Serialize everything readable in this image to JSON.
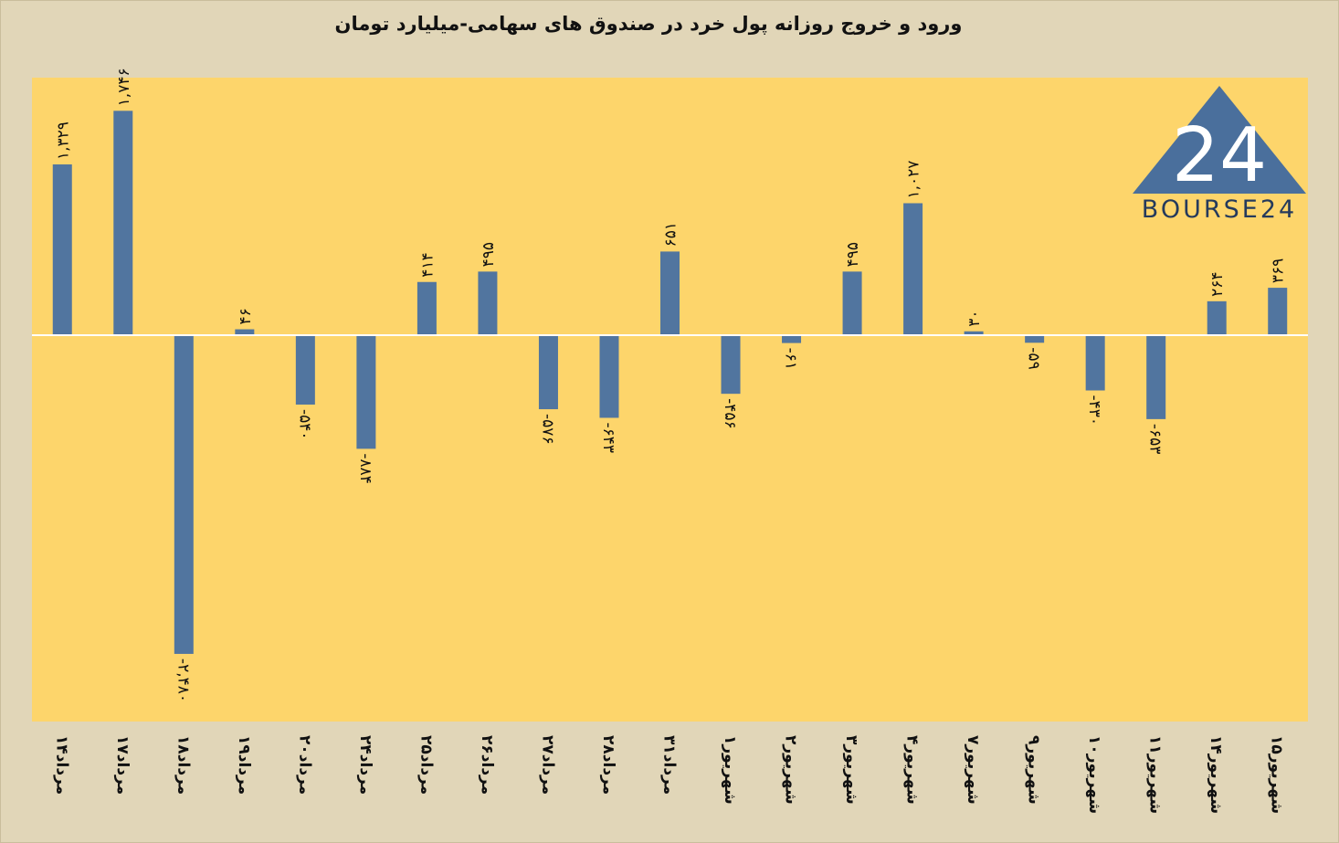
{
  "chart_data": {
    "type": "bar",
    "title": "ورود و خروج روزانه پول خرد در صندوق های سهامی-میلیارد تومان",
    "categories": [
      "۱۴مرداد",
      "۱۷مرداد",
      "۱۸مرداد",
      "۱۹مرداد",
      "۲۰مرداد",
      "۲۴مرداد",
      "۲۵مرداد",
      "۲۶مرداد",
      "۲۷مرداد",
      "۲۸مرداد",
      "۳۱مرداد",
      "۱شهریور",
      "۲شهریور",
      "۳شهریور",
      "۴شهریور",
      "۷شهریور",
      "۹شهریور",
      "۱۰شهریور",
      "۱۱شهریور",
      "۱۴شهریور",
      "۱۵شهریور"
    ],
    "values": [
      1329,
      1746,
      -2480,
      46,
      -540,
      -884,
      414,
      495,
      -576,
      -643,
      651,
      -456,
      -61,
      495,
      1027,
      30,
      -59,
      -430,
      -653,
      264,
      369
    ],
    "data_labels": [
      "۱,۳۲۹",
      "۱,۷۴۶",
      "-۲,۴۸۰",
      "۴۶",
      "-۵۴۰",
      "-۸۸۴",
      "۴۱۴",
      "۴۹۵",
      "-۵۷۶",
      "-۶۴۳",
      "۶۵۱",
      "-۴۵۶",
      "-۶۱",
      "۴۹۵",
      "۱,۰۲۷",
      "۳۰",
      "-۵۹",
      "-۴۳۰",
      "-۶۵۳",
      "۲۶۴",
      "۳۶۹"
    ],
    "ylim": [
      -3000,
      2000
    ],
    "grid": false,
    "colors": {
      "bar": "#51759f",
      "plot_background": "#fdd56b",
      "page_background": "#e1d6b8",
      "zero_line": "#ffffff"
    }
  },
  "logo": {
    "text": "BOURSE24",
    "mark": "24",
    "color": "#4a6f9c"
  }
}
